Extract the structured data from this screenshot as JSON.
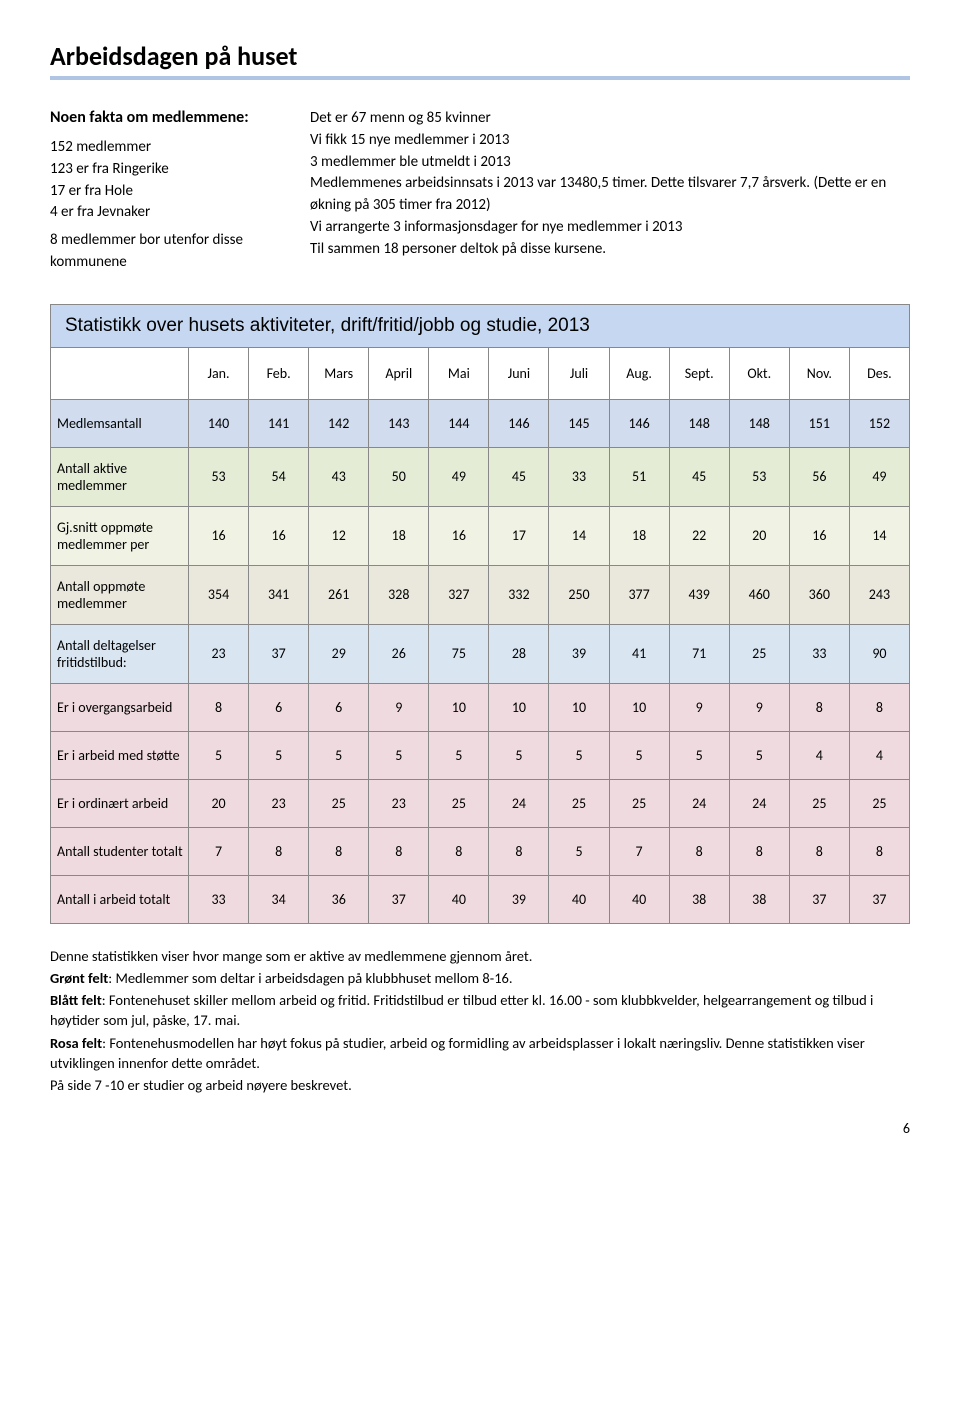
{
  "title": "Arbeidsdagen på huset",
  "facts_heading": "Noen fakta om medlemmene:",
  "facts": [
    "152 medlemmer",
    "123 er fra Ringerike",
    "17 er fra Hole",
    "4 er fra Jevnaker",
    "8 medlemmer bor utenfor disse kommunene"
  ],
  "right_lines": [
    "Det er 67 menn og 85 kvinner",
    "Vi fikk 15 nye medlemmer i 2013",
    "3 medlemmer ble utmeldt i 2013",
    "Medlemmenes arbeidsinnsats i 2013 var 13480,5 timer. Dette tilsvarer 7,7 årsverk. (Dette er en økning på 305 timer fra 2012)",
    "Vi arrangerte 3 informasjonsdager for nye medlemmer i 2013",
    "Til sammen 18 personer deltok på disse kursene."
  ],
  "table": {
    "title": "Statistikk over husets aktiviteter, drift/fritid/jobb og studie, 2013",
    "title_bg": "#c5d7f1",
    "months": [
      "Jan.",
      "Feb.",
      "Mars",
      "April",
      "Mai",
      "Juni",
      "Juli",
      "Aug.",
      "Sept.",
      "Okt.",
      "Nov.",
      "Des."
    ],
    "rows": [
      {
        "label": "Medlemsantall",
        "bg": "#d1ddef",
        "values": [
          140,
          141,
          142,
          143,
          144,
          146,
          145,
          146,
          148,
          148,
          151,
          152
        ]
      },
      {
        "label": "Antall aktive medlemmer",
        "bg": "#e4ecd6",
        "values": [
          53,
          54,
          43,
          50,
          49,
          45,
          33,
          51,
          45,
          53,
          56,
          49
        ]
      },
      {
        "label": "Gj.snitt oppmøte medlemmer per",
        "bg": "#f0f3e3",
        "values": [
          16,
          16,
          12,
          18,
          16,
          17,
          14,
          18,
          22,
          20,
          16,
          14
        ]
      },
      {
        "label": "Antall oppmøte medlemmer",
        "bg": "#eae8dc",
        "values": [
          354,
          341,
          261,
          328,
          327,
          332,
          250,
          377,
          439,
          460,
          360,
          243
        ]
      },
      {
        "label": "Antall deltagelser fritidstilbud:",
        "bg": "#d9e5f1",
        "values": [
          23,
          37,
          29,
          26,
          75,
          28,
          39,
          41,
          71,
          25,
          33,
          90
        ]
      },
      {
        "label": "Er i overgangsarbeid",
        "bg": "#efdbdf",
        "values": [
          8,
          6,
          6,
          9,
          10,
          10,
          10,
          10,
          9,
          9,
          8,
          8
        ]
      },
      {
        "label": "Er i arbeid med støtte",
        "bg": "#efdbdf",
        "values": [
          5,
          5,
          5,
          5,
          5,
          5,
          5,
          5,
          5,
          5,
          4,
          4
        ]
      },
      {
        "label": "Er i ordinært arbeid",
        "bg": "#efdbdf",
        "values": [
          20,
          23,
          25,
          23,
          25,
          24,
          25,
          25,
          24,
          24,
          25,
          25
        ]
      },
      {
        "label": "Antall studenter totalt",
        "bg": "#efdbdf",
        "values": [
          7,
          8,
          8,
          8,
          8,
          8,
          5,
          7,
          8,
          8,
          8,
          8
        ]
      },
      {
        "label": "Antall i arbeid totalt",
        "bg": "#efdbdf",
        "values": [
          33,
          34,
          36,
          37,
          40,
          39,
          40,
          40,
          38,
          38,
          37,
          37
        ]
      }
    ]
  },
  "footer": {
    "p1": "Denne statistikken viser hvor mange som er aktive av medlemmene gjennom året.",
    "p2_bold": "Grønt felt",
    "p2_rest": ": Medlemmer som deltar i arbeidsdagen på klubbhuset mellom 8-16.",
    "p3_bold": "Blått felt",
    "p3_rest": ": Fontenehuset skiller mellom arbeid og fritid. Fritidstilbud er tilbud etter kl. 16.00 - som klubbkvelder, helgearrangement og tilbud i høytider som jul, påske, 17. mai.",
    "p4_bold": "Rosa felt",
    "p4_rest": ": Fontenehusmodellen har høyt fokus på studier, arbeid og formidling av arbeidsplasser i lokalt næringsliv. Denne statistikken viser utviklingen innenfor dette området.",
    "p5": "På side 7 -10 er studier og arbeid nøyere beskrevet."
  },
  "page_number": "6"
}
